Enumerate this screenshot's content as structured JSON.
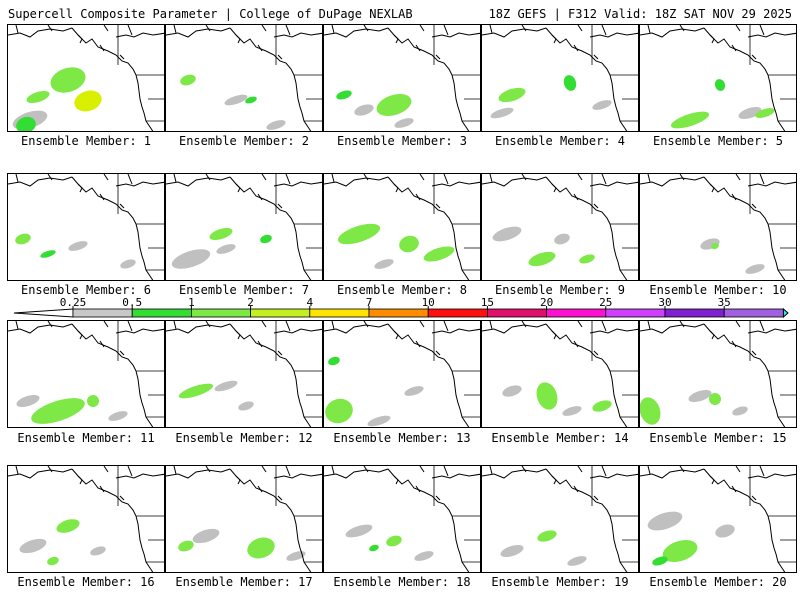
{
  "header": {
    "title_left": "Supercell Composite Parameter | College of DuPage NEXLAB",
    "title_right": "18Z GEFS | F312 Valid: 18Z SAT NOV 29 2025"
  },
  "map": {
    "region": "Northeast Pacific / Western North America",
    "land_color": "#ffffff",
    "coast_color": "#000000",
    "members": [
      {
        "label": "Ensemble Member: 1",
        "blobs": [
          [
            "#7ee847",
            60,
            55,
            18,
            12
          ],
          [
            "#d8f000",
            80,
            76,
            14,
            10
          ],
          [
            "#c0c0c0",
            22,
            95,
            18,
            8
          ],
          [
            "#33dd33",
            18,
            100,
            10,
            8
          ],
          [
            "#7ee847",
            30,
            72,
            12,
            5
          ]
        ]
      },
      {
        "label": "Ensemble Member: 2",
        "blobs": [
          [
            "#7ee847",
            22,
            55,
            8,
            5
          ],
          [
            "#c0c0c0",
            70,
            75,
            12,
            4
          ],
          [
            "#c0c0c0",
            110,
            100,
            10,
            4
          ],
          [
            "#33dd33",
            85,
            75,
            6,
            3
          ]
        ]
      },
      {
        "label": "Ensemble Member: 3",
        "blobs": [
          [
            "#7ee847",
            70,
            80,
            18,
            10
          ],
          [
            "#c0c0c0",
            40,
            85,
            10,
            5
          ],
          [
            "#33dd33",
            20,
            70,
            8,
            4
          ],
          [
            "#c0c0c0",
            80,
            98,
            10,
            4
          ]
        ]
      },
      {
        "label": "Ensemble Member: 4",
        "blobs": [
          [
            "#7ee847",
            30,
            70,
            14,
            6
          ],
          [
            "#33dd33",
            88,
            58,
            6,
            8
          ],
          [
            "#c0c0c0",
            20,
            88,
            12,
            4
          ],
          [
            "#c0c0c0",
            120,
            80,
            10,
            4
          ]
        ]
      },
      {
        "label": "Ensemble Member: 5",
        "blobs": [
          [
            "#7ee847",
            50,
            95,
            20,
            6
          ],
          [
            "#33dd33",
            80,
            60,
            5,
            6
          ],
          [
            "#c0c0c0",
            110,
            88,
            12,
            5
          ],
          [
            "#7ee847",
            125,
            88,
            10,
            4
          ]
        ]
      },
      {
        "label": "Ensemble Member: 6",
        "blobs": [
          [
            "#7ee847",
            15,
            65,
            8,
            5
          ],
          [
            "#c0c0c0",
            70,
            72,
            10,
            4
          ],
          [
            "#33dd33",
            40,
            80,
            8,
            3
          ],
          [
            "#c0c0c0",
            120,
            90,
            8,
            4
          ]
        ]
      },
      {
        "label": "Ensemble Member: 7",
        "blobs": [
          [
            "#c0c0c0",
            25,
            85,
            20,
            8
          ],
          [
            "#7ee847",
            55,
            60,
            12,
            5
          ],
          [
            "#c0c0c0",
            60,
            75,
            10,
            4
          ],
          [
            "#33dd33",
            100,
            65,
            6,
            4
          ]
        ]
      },
      {
        "label": "Ensemble Member: 8",
        "blobs": [
          [
            "#7ee847",
            35,
            60,
            22,
            8
          ],
          [
            "#7ee847",
            85,
            70,
            10,
            8
          ],
          [
            "#7ee847",
            115,
            80,
            16,
            6
          ],
          [
            "#c0c0c0",
            60,
            90,
            10,
            4
          ]
        ]
      },
      {
        "label": "Ensemble Member: 9",
        "blobs": [
          [
            "#c0c0c0",
            25,
            60,
            15,
            6
          ],
          [
            "#7ee847",
            60,
            85,
            14,
            6
          ],
          [
            "#c0c0c0",
            80,
            65,
            8,
            5
          ],
          [
            "#7ee847",
            105,
            85,
            8,
            4
          ]
        ]
      },
      {
        "label": "Ensemble Member: 10",
        "blobs": [
          [
            "#c0c0c0",
            70,
            70,
            10,
            5
          ],
          [
            "#c0c0c0",
            115,
            95,
            10,
            4
          ],
          [
            "#7ee847",
            75,
            72,
            4,
            3
          ]
        ]
      },
      {
        "label": "Ensemble Member: 11",
        "blobs": [
          [
            "#7ee847",
            50,
            90,
            28,
            10
          ],
          [
            "#c0c0c0",
            20,
            80,
            12,
            5
          ],
          [
            "#7ee847",
            85,
            80,
            6,
            6
          ],
          [
            "#c0c0c0",
            110,
            95,
            10,
            4
          ]
        ]
      },
      {
        "label": "Ensemble Member: 12",
        "blobs": [
          [
            "#7ee847",
            30,
            70,
            18,
            5
          ],
          [
            "#c0c0c0",
            60,
            65,
            12,
            4
          ],
          [
            "#c0c0c0",
            80,
            85,
            8,
            4
          ]
        ]
      },
      {
        "label": "Ensemble Member: 13",
        "blobs": [
          [
            "#7ee847",
            15,
            90,
            14,
            12
          ],
          [
            "#c0c0c0",
            55,
            100,
            12,
            4
          ],
          [
            "#c0c0c0",
            90,
            70,
            10,
            4
          ],
          [
            "#33dd33",
            10,
            40,
            6,
            4
          ]
        ]
      },
      {
        "label": "Ensemble Member: 14",
        "blobs": [
          [
            "#7ee847",
            65,
            75,
            10,
            14
          ],
          [
            "#c0c0c0",
            30,
            70,
            10,
            5
          ],
          [
            "#7ee847",
            120,
            85,
            10,
            5
          ],
          [
            "#c0c0c0",
            90,
            90,
            10,
            4
          ]
        ]
      },
      {
        "label": "Ensemble Member: 15",
        "blobs": [
          [
            "#7ee847",
            10,
            90,
            10,
            14
          ],
          [
            "#c0c0c0",
            60,
            75,
            12,
            5
          ],
          [
            "#7ee847",
            75,
            78,
            6,
            6
          ],
          [
            "#c0c0c0",
            100,
            90,
            8,
            4
          ]
        ]
      },
      {
        "label": "Ensemble Member: 16",
        "blobs": [
          [
            "#7ee847",
            60,
            60,
            12,
            6
          ],
          [
            "#c0c0c0",
            25,
            80,
            14,
            6
          ],
          [
            "#c0c0c0",
            90,
            85,
            8,
            4
          ],
          [
            "#7ee847",
            45,
            95,
            6,
            4
          ]
        ]
      },
      {
        "label": "Ensemble Member: 17",
        "blobs": [
          [
            "#7ee847",
            95,
            82,
            14,
            10
          ],
          [
            "#c0c0c0",
            40,
            70,
            14,
            6
          ],
          [
            "#7ee847",
            20,
            80,
            8,
            5
          ],
          [
            "#c0c0c0",
            130,
            90,
            10,
            4
          ]
        ]
      },
      {
        "label": "Ensemble Member: 18",
        "blobs": [
          [
            "#c0c0c0",
            35,
            65,
            14,
            5
          ],
          [
            "#7ee847",
            70,
            75,
            8,
            5
          ],
          [
            "#c0c0c0",
            100,
            90,
            10,
            4
          ],
          [
            "#33dd33",
            50,
            82,
            5,
            3
          ]
        ]
      },
      {
        "label": "Ensemble Member: 19",
        "blobs": [
          [
            "#7ee847",
            65,
            70,
            10,
            5
          ],
          [
            "#c0c0c0",
            30,
            85,
            12,
            5
          ],
          [
            "#c0c0c0",
            95,
            95,
            10,
            4
          ]
        ]
      },
      {
        "label": "Ensemble Member: 20",
        "blobs": [
          [
            "#c0c0c0",
            25,
            55,
            18,
            8
          ],
          [
            "#7ee847",
            40,
            85,
            18,
            10
          ],
          [
            "#c0c0c0",
            85,
            65,
            10,
            6
          ],
          [
            "#33dd33",
            20,
            95,
            8,
            4
          ]
        ]
      }
    ]
  },
  "legend": {
    "ticks": [
      "0.25",
      "0.5",
      "1",
      "2",
      "4",
      "7",
      "10",
      "15",
      "20",
      "25",
      "30",
      "35"
    ],
    "colors": [
      "#c8c8c8",
      "#33dd33",
      "#7ee847",
      "#c4f01f",
      "#ffe400",
      "#ff8c00",
      "#ff1010",
      "#e0106a",
      "#ff10d0",
      "#d040ff",
      "#8020d0",
      "#a060e0",
      "#30e8f0"
    ],
    "min_start": "#ffffff"
  }
}
